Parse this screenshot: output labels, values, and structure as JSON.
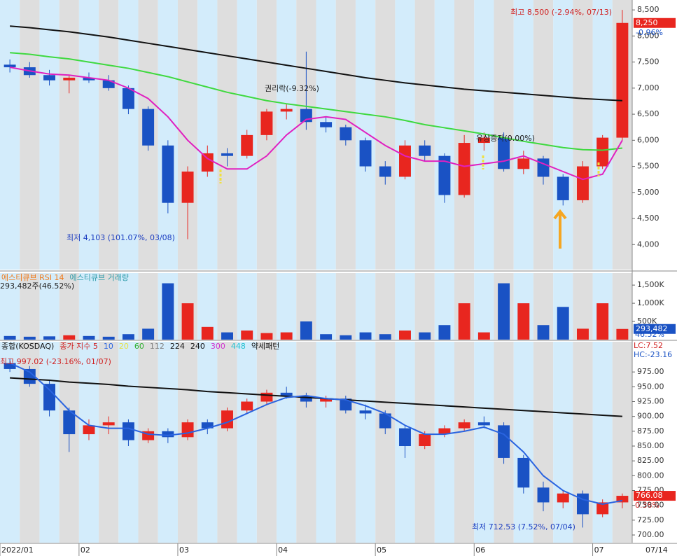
{
  "chart_data": [
    {
      "type": "candlestick",
      "open": [
        7450,
        7400,
        7250,
        7150,
        7200,
        7150,
        7000,
        6600,
        5900,
        4800,
        5400,
        5750,
        5700,
        6100,
        6550,
        6600,
        6350,
        6250,
        6000,
        5500,
        5300,
        5900,
        5700,
        4950,
        5950,
        6050,
        5450,
        5650,
        5300,
        4850,
        5500,
        6050
      ],
      "high": [
        7550,
        7500,
        7350,
        7250,
        7300,
        7250,
        7050,
        6650,
        6000,
        5500,
        5900,
        5850,
        6200,
        6600,
        6700,
        7700,
        6450,
        6300,
        6050,
        5600,
        6000,
        6000,
        5750,
        6100,
        6150,
        6150,
        5800,
        5700,
        5350,
        5600,
        6100,
        8500
      ],
      "low": [
        7300,
        7200,
        7050,
        6900,
        7100,
        6950,
        6500,
        5800,
        4600,
        4103,
        5300,
        5500,
        5650,
        6000,
        6400,
        6200,
        6150,
        5900,
        5400,
        5150,
        5250,
        5600,
        4800,
        4900,
        5800,
        5400,
        5350,
        5150,
        4750,
        4800,
        5450,
        6000
      ],
      "close": [
        7400,
        7250,
        7150,
        7200,
        7150,
        7000,
        6600,
        5900,
        4800,
        5400,
        5750,
        5700,
        6100,
        6550,
        6600,
        6350,
        6250,
        6000,
        5500,
        5300,
        5900,
        5700,
        4950,
        5950,
        6050,
        5450,
        5650,
        5300,
        4850,
        5500,
        6050,
        8250
      ],
      "up_color": "#e8261f",
      "down_color": "#1a52c4",
      "lines": [
        {
          "color": "#111111",
          "values": [
            8190,
            8160,
            8120,
            8080,
            8030,
            7980,
            7920,
            7860,
            7800,
            7740,
            7680,
            7620,
            7560,
            7500,
            7440,
            7380,
            7320,
            7260,
            7200,
            7150,
            7100,
            7060,
            7020,
            6980,
            6950,
            6920,
            6890,
            6860,
            6830,
            6800,
            6780,
            6760
          ]
        },
        {
          "color": "#3fd93f",
          "values": [
            7680,
            7650,
            7600,
            7560,
            7500,
            7440,
            7380,
            7300,
            7220,
            7120,
            7020,
            6920,
            6840,
            6760,
            6700,
            6650,
            6600,
            6550,
            6500,
            6450,
            6380,
            6300,
            6240,
            6180,
            6120,
            6050,
            5980,
            5920,
            5860,
            5820,
            5810,
            5850
          ]
        },
        {
          "color": "#e020c0",
          "values": [
            7400,
            7330,
            7270,
            7250,
            7200,
            7150,
            7000,
            6800,
            6450,
            6000,
            5650,
            5450,
            5450,
            5700,
            6100,
            6400,
            6450,
            6400,
            6150,
            5900,
            5700,
            5600,
            5600,
            5500,
            5550,
            5600,
            5700,
            5550,
            5400,
            5250,
            5350,
            6000
          ]
        }
      ],
      "ylim": [
        3520,
        8690
      ],
      "yticks": [
        {
          "value": 4000,
          "label": "4,000"
        },
        {
          "value": 4500,
          "label": "4,500"
        },
        {
          "value": 5000,
          "label": "5,000"
        },
        {
          "value": 5500,
          "label": "5,500"
        },
        {
          "value": 6000,
          "label": "6,000"
        },
        {
          "value": 6500,
          "label": "6,500"
        },
        {
          "value": 7000,
          "label": "7,000"
        },
        {
          "value": 7500,
          "label": "7,500"
        },
        {
          "value": 8000,
          "label": "8,000"
        },
        {
          "value": 8500,
          "label": "8,500"
        }
      ],
      "high_label": "최고 8,500 (-2.94%, 07/13)",
      "low_label": "최저 4,103 (101.07%, 03/08)",
      "last_label": "8,250",
      "last_change": "-0.96%",
      "events": [
        "권리락(-9.32%)",
        "유상증자(0.00%)"
      ]
    },
    {
      "type": "bar",
      "values": [
        100000,
        80000,
        90000,
        120000,
        100000,
        80000,
        150000,
        300000,
        1550000,
        1000000,
        350000,
        200000,
        250000,
        180000,
        200000,
        500000,
        150000,
        120000,
        200000,
        150000,
        250000,
        200000,
        400000,
        1000000,
        200000,
        1550000,
        1000000,
        400000,
        900000,
        300000,
        1000000,
        293482
      ],
      "ylim": [
        0,
        1830000
      ],
      "yticks": [
        {
          "value": 500000,
          "label": "500K"
        },
        {
          "value": 1000000,
          "label": "1,000K"
        },
        {
          "value": 1500000,
          "label": "1,500K"
        }
      ],
      "legend": [
        {
          "text": "에스티큐브 RSI 14",
          "color": "#f07a1a"
        },
        {
          "text": "에스티큐브 거래량",
          "color": "#2a9aa8"
        }
      ],
      "summary": "293,482주(46.52%)",
      "last_label": "293,482",
      "last_pct": "46.52%"
    },
    {
      "type": "candlestick",
      "categories": [
        "2022/01",
        null,
        null,
        null,
        "02",
        null,
        null,
        null,
        null,
        "03",
        null,
        null,
        null,
        null,
        "04",
        null,
        null,
        null,
        null,
        "05",
        null,
        null,
        null,
        null,
        "06",
        null,
        null,
        null,
        null,
        null,
        "07",
        null
      ],
      "open": [
        990,
        980,
        955,
        910,
        870,
        885,
        890,
        860,
        875,
        865,
        890,
        880,
        910,
        925,
        940,
        935,
        925,
        930,
        910,
        905,
        880,
        850,
        870,
        880,
        890,
        885,
        830,
        780,
        755,
        770,
        735,
        755
      ],
      "high": [
        997.02,
        985,
        960,
        915,
        895,
        900,
        895,
        880,
        880,
        895,
        895,
        915,
        930,
        945,
        950,
        940,
        935,
        935,
        920,
        910,
        885,
        875,
        885,
        895,
        900,
        890,
        835,
        790,
        775,
        775,
        760,
        770
      ],
      "low": [
        975,
        950,
        900,
        840,
        860,
        870,
        850,
        855,
        855,
        860,
        870,
        875,
        905,
        920,
        930,
        915,
        915,
        905,
        895,
        870,
        830,
        845,
        865,
        875,
        880,
        820,
        770,
        740,
        745,
        712.53,
        730,
        745
      ],
      "close": [
        980,
        955,
        910,
        870,
        885,
        890,
        860,
        875,
        865,
        890,
        880,
        910,
        925,
        940,
        935,
        925,
        930,
        910,
        905,
        880,
        850,
        870,
        880,
        890,
        885,
        830,
        780,
        755,
        770,
        735,
        755,
        766.08
      ],
      "up_color": "#e8261f",
      "down_color": "#1a52c4",
      "lines": [
        {
          "color": "#111111",
          "values": [
            965,
            963,
            961,
            958,
            956,
            954,
            951,
            949,
            947,
            945,
            942,
            940,
            938,
            936,
            934,
            932,
            930,
            928,
            926,
            924,
            922,
            920,
            918,
            916,
            914,
            912,
            910,
            908,
            906,
            904,
            902,
            900
          ]
        },
        {
          "color": "#2a64e0",
          "values": [
            990,
            975,
            945,
            910,
            885,
            880,
            880,
            870,
            868,
            872,
            880,
            890,
            905,
            920,
            932,
            935,
            930,
            928,
            918,
            905,
            885,
            870,
            870,
            875,
            882,
            870,
            840,
            800,
            775,
            760,
            752,
            758
          ]
        }
      ],
      "ylim": [
        687,
        1026
      ],
      "yticks": [
        {
          "value": 700,
          "label": "700.00"
        },
        {
          "value": 725,
          "label": "725.00"
        },
        {
          "value": 750,
          "label": "750.00"
        },
        {
          "value": 775,
          "label": "775.00"
        },
        {
          "value": 800,
          "label": "800.00"
        },
        {
          "value": 825,
          "label": "825.00"
        },
        {
          "value": 850,
          "label": "850.00"
        },
        {
          "value": 875,
          "label": "875.00"
        },
        {
          "value": 900,
          "label": "900.00"
        },
        {
          "value": 925,
          "label": "925.00"
        },
        {
          "value": 950,
          "label": "950.00"
        },
        {
          "value": 975,
          "label": "975.00"
        }
      ],
      "legend": [
        {
          "text": "종합(KOSDAQ)",
          "color": "#111111"
        },
        {
          "text": "종가 지수 5",
          "color": "#d02020"
        },
        {
          "text": "10",
          "color": "#2a64e0"
        },
        {
          "text": "20",
          "color": "#e8e040"
        },
        {
          "text": "60",
          "color": "#30b030"
        },
        {
          "text": "112",
          "color": "#808080"
        },
        {
          "text": "224",
          "color": "#111111"
        },
        {
          "text": "240",
          "color": "#111111"
        },
        {
          "text": "300",
          "color": "#d030d0"
        },
        {
          "text": "448",
          "color": "#20c0d0"
        },
        {
          "text": "약세패턴",
          "color": "#111111"
        }
      ],
      "high_label": "최고 997.02 (-23.16%, 01/07)",
      "low_label": "최저 712.53 (7.52%, 07/04)",
      "last_change": "0.38%",
      "lc": "LC:7.52",
      "hc": "HC:-23.16",
      "last_date": "07/14"
    }
  ]
}
